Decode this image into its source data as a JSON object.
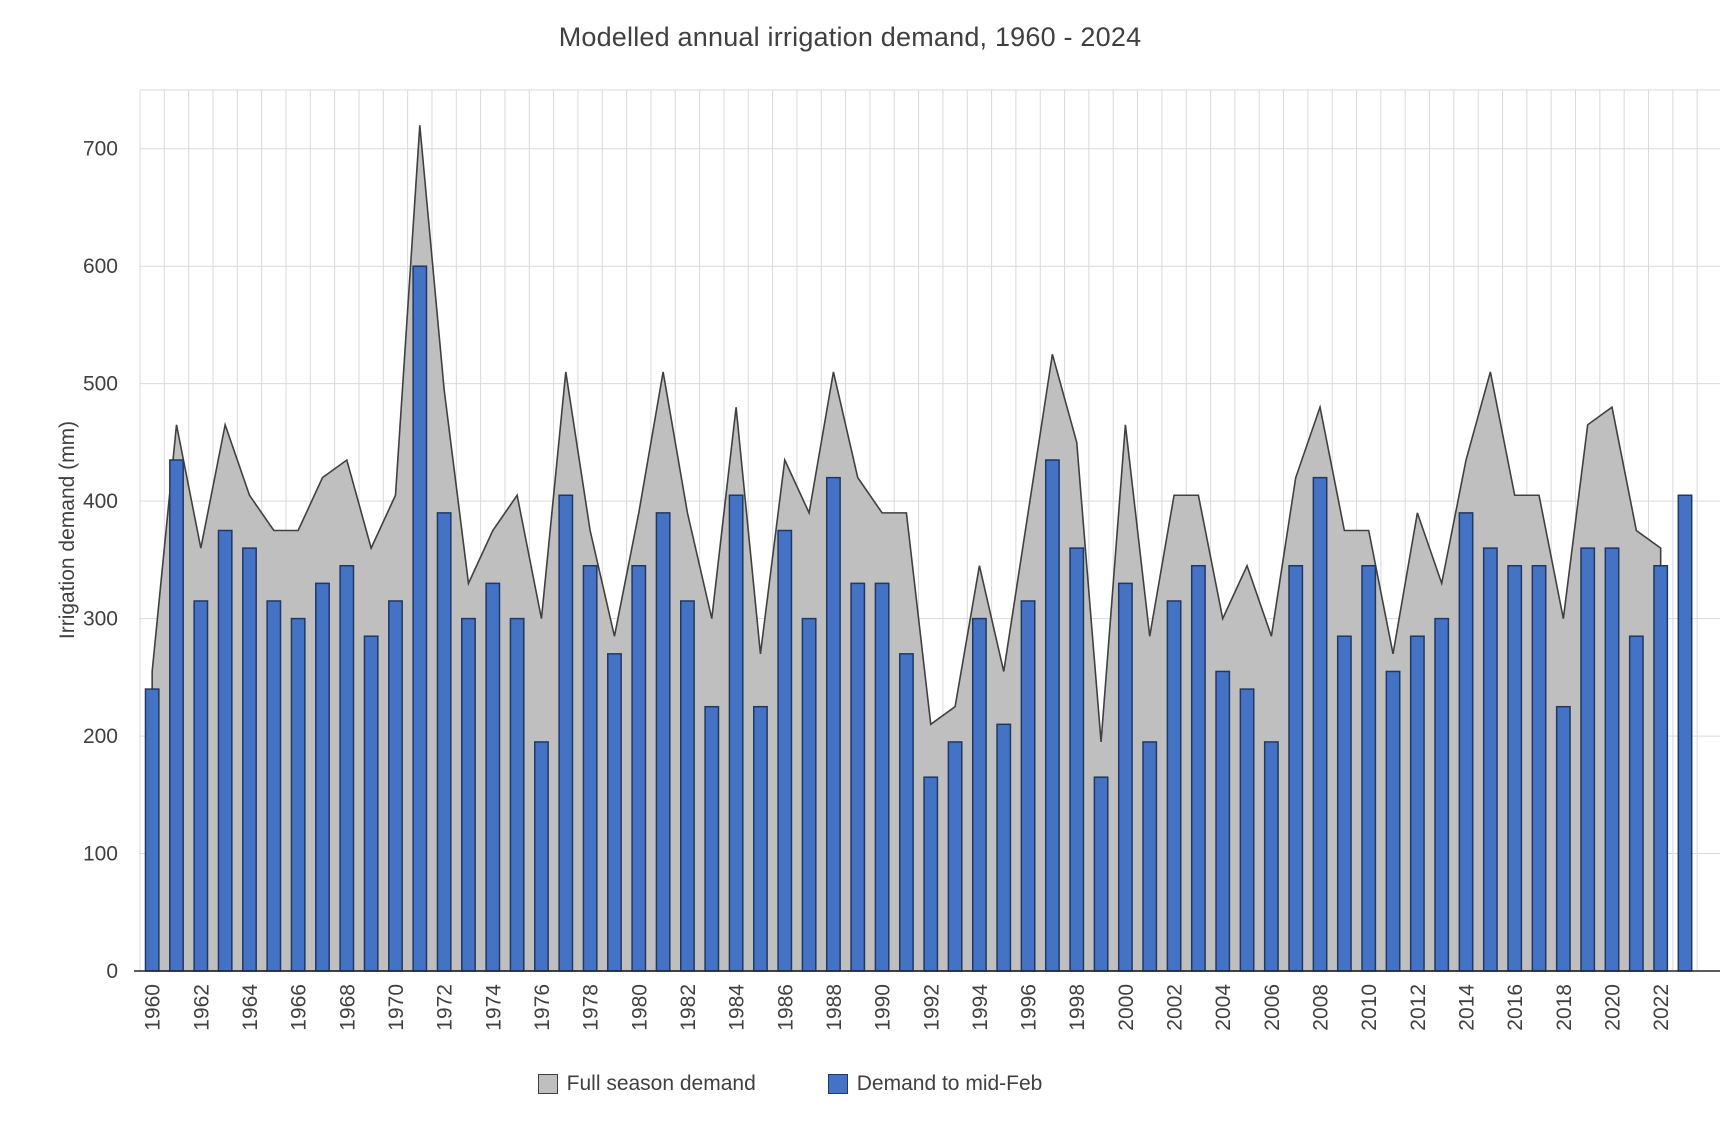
{
  "title": "Modelled annual irrigation demand, 1960 - 2024",
  "y_axis": {
    "label": "Irrigation demand (mm)",
    "min": 0,
    "max": 750,
    "tick_step": 100,
    "tick_labels": [
      "0",
      "100",
      "200",
      "300",
      "400",
      "500",
      "600",
      "700"
    ]
  },
  "x_axis": {
    "tick_labels": [
      "1960",
      "1962",
      "1964",
      "1966",
      "1968",
      "1970",
      "1972",
      "1974",
      "1976",
      "1978",
      "1980",
      "1982",
      "1984",
      "1986",
      "1988",
      "1990",
      "1992",
      "1994",
      "1996",
      "1998",
      "2000",
      "2002",
      "2004",
      "2006",
      "2008",
      "2010",
      "2012",
      "2014",
      "2016",
      "2018",
      "2020",
      "2022"
    ]
  },
  "legend": {
    "items": [
      {
        "label": "Full season demand",
        "color": "#BFBFBF",
        "border": "#404040"
      },
      {
        "label": "Demand to mid-Feb",
        "color": "#4472C4",
        "border": "#203864"
      }
    ]
  },
  "colors": {
    "background": "#FFFFFF",
    "gridline": "#D9D9D9",
    "axis_line": "#262626",
    "text": "#404040",
    "area_fill": "#BFBFBF",
    "area_border": "#404040",
    "bar_fill": "#4472C4",
    "bar_border": "#203864"
  },
  "chart_data": {
    "type": "combo",
    "title": "Modelled annual irrigation demand, 1960 - 2024",
    "xlabel": "",
    "ylabel": "Irrigation demand (mm)",
    "ylim": [
      0,
      750
    ],
    "grid": true,
    "legend_position": "bottom",
    "categories": [
      1960,
      1961,
      1962,
      1963,
      1964,
      1965,
      1966,
      1967,
      1968,
      1969,
      1970,
      1971,
      1972,
      1973,
      1974,
      1975,
      1976,
      1977,
      1978,
      1979,
      1980,
      1981,
      1982,
      1983,
      1984,
      1985,
      1986,
      1987,
      1988,
      1989,
      1990,
      1991,
      1992,
      1993,
      1994,
      1995,
      1996,
      1997,
      1998,
      1999,
      2000,
      2001,
      2002,
      2003,
      2004,
      2005,
      2006,
      2007,
      2008,
      2009,
      2010,
      2011,
      2012,
      2013,
      2014,
      2015,
      2016,
      2017,
      2018,
      2019,
      2020,
      2021,
      2022,
      2023,
      2024
    ],
    "series": [
      {
        "name": "Full season demand",
        "type": "area",
        "values": [
          255,
          465,
          360,
          465,
          405,
          375,
          375,
          420,
          435,
          360,
          405,
          720,
          495,
          330,
          375,
          405,
          300,
          510,
          375,
          285,
          390,
          510,
          390,
          300,
          480,
          270,
          435,
          390,
          510,
          420,
          390,
          390,
          210,
          225,
          345,
          255,
          390,
          525,
          450,
          195,
          465,
          285,
          405,
          405,
          300,
          345,
          285,
          420,
          480,
          375,
          375,
          270,
          390,
          330,
          435,
          510,
          405,
          405,
          300,
          465,
          480,
          375,
          360,
          null,
          null
        ]
      },
      {
        "name": "Demand to mid-Feb",
        "type": "bar",
        "values": [
          240,
          435,
          315,
          375,
          360,
          315,
          300,
          330,
          345,
          285,
          315,
          600,
          390,
          300,
          330,
          300,
          195,
          405,
          345,
          270,
          345,
          390,
          315,
          225,
          405,
          225,
          375,
          300,
          420,
          330,
          330,
          270,
          165,
          195,
          300,
          210,
          315,
          435,
          360,
          165,
          330,
          195,
          315,
          345,
          255,
          240,
          195,
          345,
          420,
          285,
          345,
          255,
          285,
          300,
          390,
          360,
          345,
          345,
          225,
          360,
          360,
          285,
          345,
          405,
          null
        ]
      }
    ]
  }
}
